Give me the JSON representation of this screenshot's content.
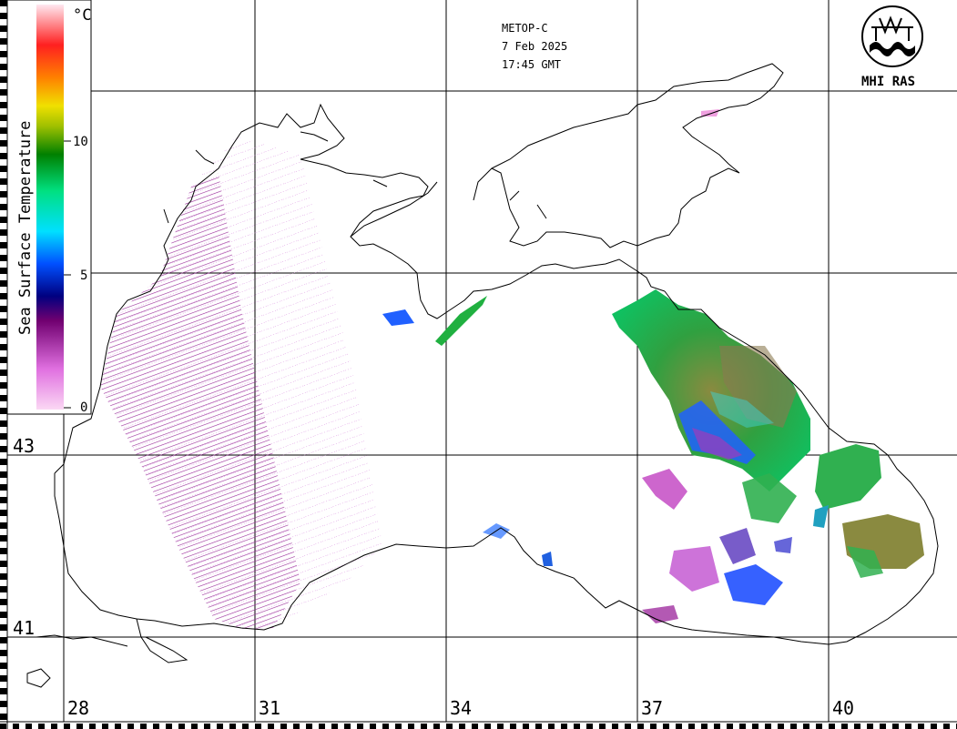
{
  "header": {
    "satellite": "METOP-C",
    "date": "7 Feb 2025",
    "time": "17:45 GMT"
  },
  "logo": {
    "text": "MHI RAS"
  },
  "colorbar": {
    "title": "Sea Surface Temperature",
    "unit": "°C",
    "ticks": [
      "10",
      "5",
      "0"
    ],
    "stops": [
      "#f8c8f0",
      "#e060e0",
      "#600060",
      "#000080",
      "#0040ff",
      "#00e0ff",
      "#00e080",
      "#008000",
      "#a0c000",
      "#f0e000",
      "#ff8000",
      "#ff2020",
      "#ffd0e0"
    ]
  },
  "axes": {
    "longitude_labels": [
      "28",
      "31",
      "34",
      "37",
      "40"
    ],
    "latitude_labels": [
      "43",
      "41"
    ]
  },
  "colors": {
    "background": "#ffffff",
    "grid": "#000000",
    "coast": "#000000"
  }
}
